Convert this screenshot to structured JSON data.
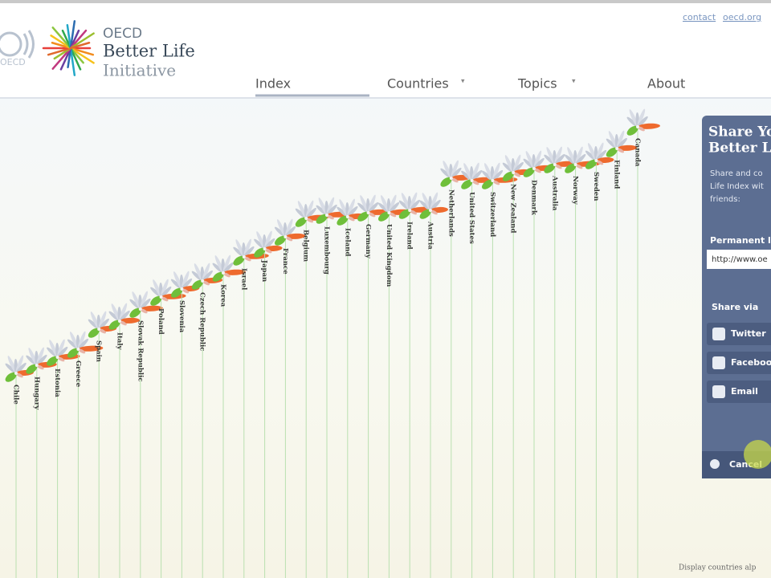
{
  "header": {
    "logo_oecd": "OECD",
    "logo_title": "Better Life",
    "logo_subtitle": "Initiative",
    "top_links": [
      "contact",
      "oecd.org"
    ],
    "nav": [
      "Index",
      "Countries",
      "Topics",
      "About"
    ]
  },
  "countries": [
    "Chile",
    "Hungary",
    "Estonia",
    "Greece",
    "Spain",
    "Italy",
    "Slovak Republic",
    "Poland",
    "Slovenia",
    "Czech Republic",
    "Korea",
    "Israel",
    "Japan",
    "France",
    "Belgium",
    "Luxembourg",
    "Iceland",
    "Germany",
    "United Kingdom",
    "Ireland",
    "Austria",
    "Netherlands",
    "United States",
    "Switzerland",
    "New Zealand",
    "Denmark",
    "Australia",
    "Norway",
    "Sweden",
    "Finland",
    "Canada"
  ],
  "share_panel": {
    "title_lines": [
      "Share Yo",
      "Better Li"
    ],
    "intro_lines": [
      "Share and co",
      "Life Index wit",
      "friends:"
    ],
    "permanent_link_label": "Permanent li",
    "link_value": "http://www.oe",
    "share_via": "Share via",
    "buttons": [
      "Twitter",
      "Faceboo",
      "Email"
    ],
    "cancel": "Cancel"
  },
  "footer": {
    "sort_note": "Display countries alp"
  }
}
